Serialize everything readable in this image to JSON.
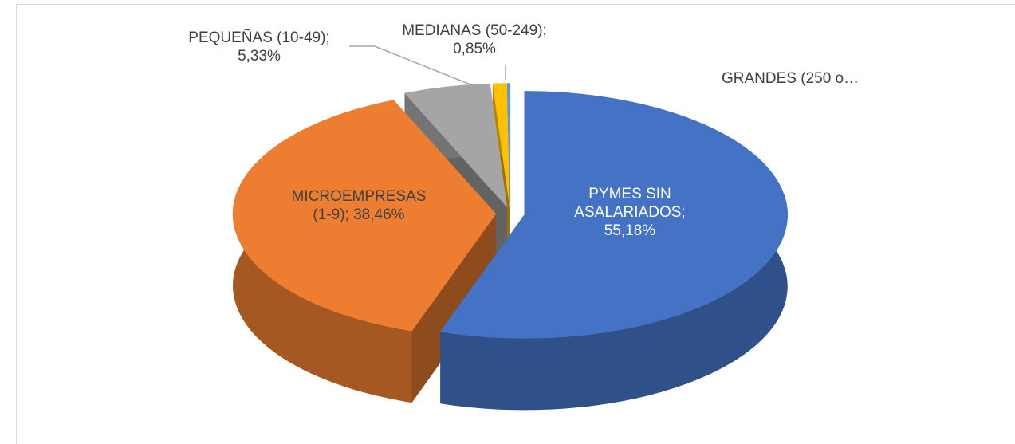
{
  "chart_data": {
    "type": "pie",
    "categories": [
      "PYMES SIN ASALARIADOS;",
      "MICROEMPRESAS (1-9);",
      "PEQUEÑAS (10-49);",
      "MEDIANAS (50-249);",
      "GRANDES (250 o…"
    ],
    "values": [
      55.18,
      38.46,
      5.33,
      0.85,
      0.18
    ],
    "value_labels": [
      "55,18%",
      "38,46%",
      "5,33%",
      "0,85%",
      null
    ],
    "colors": [
      "#4472c4",
      "#ed7d31",
      "#a5a5a5",
      "#ffc000",
      "#5b9bd5"
    ]
  }
}
